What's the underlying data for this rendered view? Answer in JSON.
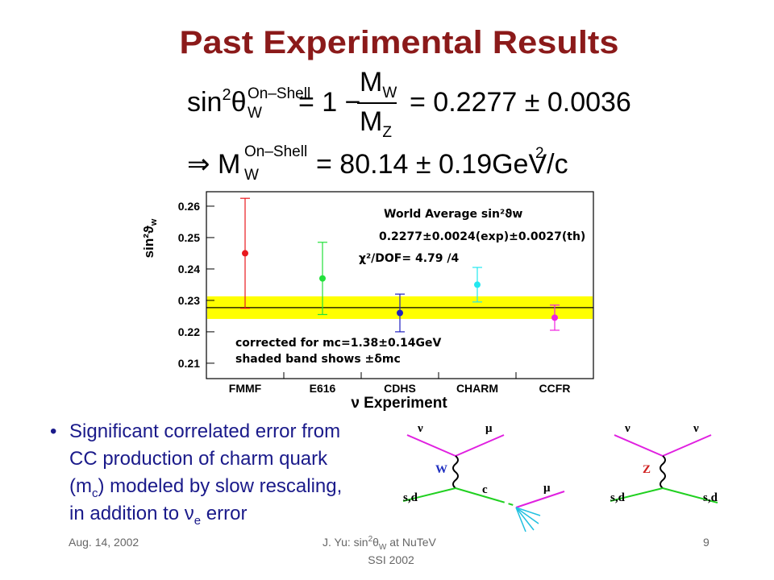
{
  "title": "Past Experimental Results",
  "formula1": {
    "lhs": "sin",
    "lhs_sup": "2",
    "theta": "θ",
    "theta_sub": "W",
    "theta_sup": "On–Shell",
    "eq": "= 1 −",
    "num": "M",
    "num_sub": "W",
    "den": "M",
    "den_sub": "Z",
    "rhs": "= 0.2277 ± 0.0036"
  },
  "formula2": {
    "arrow": "⇒",
    "m": "M",
    "m_sub": "W",
    "m_sup": "On–Shell",
    "rhs": "= 80.14 ± 0.19GeV/c",
    "rhs_sup": "2"
  },
  "chart_data": {
    "type": "errorbar",
    "y_label": "sin²ϑ",
    "y_label_sub": "w",
    "x_label": "ν Experiment",
    "categories": [
      "FMMF",
      "E616",
      "CDHS",
      "CHARM",
      "CCFR"
    ],
    "series": [
      {
        "values": [
          0.245,
          0.237,
          0.226,
          0.235,
          0.2245
        ],
        "errors": [
          0.0175,
          0.0115,
          0.006,
          0.0055,
          0.004
        ],
        "colors": [
          "#e8191e",
          "#22e03a",
          "#2020c0",
          "#22e8f0",
          "#f020e0"
        ]
      }
    ],
    "band": {
      "center": 0.2277,
      "halfwidth": 0.0036,
      "color": "#ffff00"
    },
    "ylim": [
      0.2051,
      0.2646
    ],
    "yticks": [
      0.21,
      0.22,
      0.23,
      0.24,
      0.25,
      0.26
    ],
    "grid": false,
    "annotations": [
      "World Average sin²ϑw",
      "0.2277±0.0024(exp)±0.0027(th)",
      "χ²/DOF= 4.79 /4",
      "corrected for mc=1.38±0.14GeV",
      "shaded band shows ±δmc"
    ]
  },
  "bullet": {
    "line1": "Significant correlated error from",
    "line2": "CC production of charm quark",
    "line3a": "(m",
    "line3sub": "c",
    "line3b": ") modeled by slow rescaling,",
    "line4a": "in addition to ",
    "nu": "ν",
    "nu_sub": "e",
    "line4b": " error"
  },
  "diagram1": {
    "nu": "ν",
    "mu1": "μ",
    "boson": "W",
    "quark_in": "s,d",
    "quark_out": "c",
    "mu2": "μ"
  },
  "diagram2": {
    "nu_in": "ν",
    "nu_out": "ν",
    "boson": "Z",
    "quark_in": "s,d",
    "quark_out": "s,d"
  },
  "footer": {
    "date": "Aug. 14, 2002",
    "author": "J. Yu: sin",
    "author_sup": "2",
    "theta": "θ",
    "theta_sub": "W",
    "author_rest": " at NuTeV",
    "event": "SSI 2002",
    "page": "9"
  }
}
